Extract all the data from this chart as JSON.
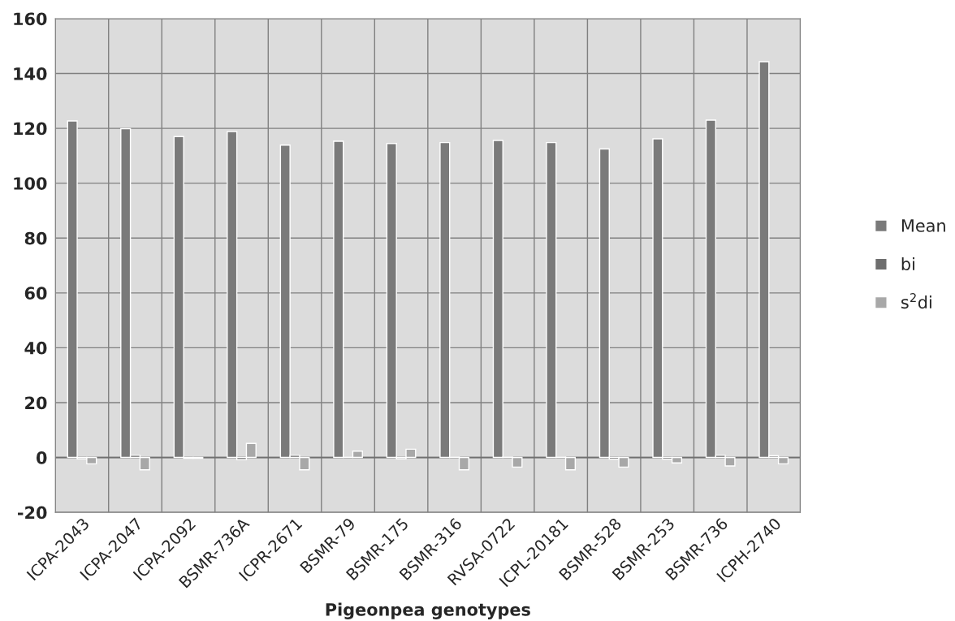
{
  "chart_data": {
    "type": "bar",
    "xlabel": "Pigeonpea genotypes",
    "categories": [
      "ICPA-2043",
      "ICPA-2047",
      "ICPA-2092",
      "BSMR-736A",
      "ICPR-2671",
      "BSMR-79",
      "BSMR-175",
      "BSMR-316",
      "RVSA-0722",
      "ICPL-20181",
      "BSMR-528",
      "BSMR-253",
      "BSMR-736",
      "ICPH-2740"
    ],
    "series": [
      {
        "name": "Mean",
        "color": "#7a7a7a",
        "values": [
          122.7,
          119.9,
          117,
          118.8,
          113.9,
          115.3,
          114.5,
          114.8,
          115.6,
          114.8,
          112.5,
          116.2,
          123,
          144.3
        ]
      },
      {
        "name": "bi",
        "color": "#6e6e6e",
        "values": [
          -0.5,
          0.8,
          -0.3,
          -0.8,
          0.8,
          0.2,
          -0.5,
          0.2,
          0.2,
          0.2,
          -0.6,
          -0.6,
          0.8,
          0.6
        ]
      },
      {
        "name": "s$^{2}$di",
        "color": "#a8a8a8",
        "values": [
          -2.3,
          -4.5,
          -0.3,
          5.1,
          -4.5,
          2.3,
          3,
          -4.5,
          -3.5,
          -4.5,
          -3.5,
          -2,
          -3.1,
          -2.3
        ]
      }
    ],
    "ylim": [
      -20,
      160
    ],
    "yticks": [
      -20,
      0,
      20,
      40,
      60,
      80,
      100,
      120,
      140,
      160
    ],
    "grid": true,
    "legend": "right"
  }
}
